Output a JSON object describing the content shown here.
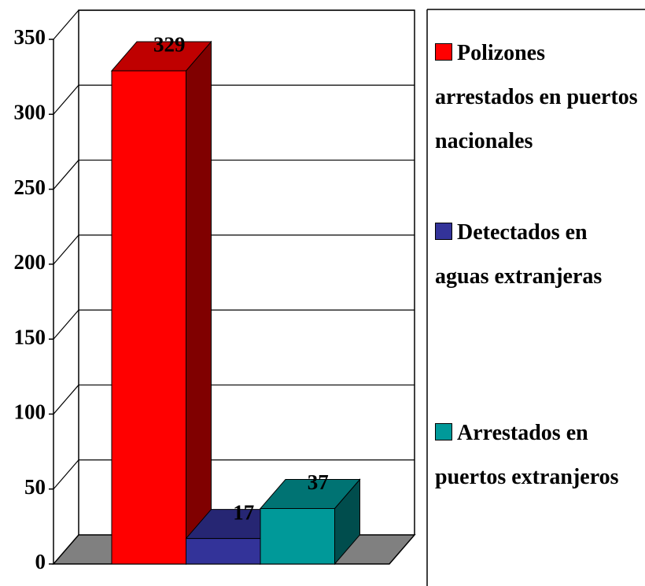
{
  "chart_data": {
    "type": "bar3d",
    "categories": [
      null
    ],
    "series": [
      {
        "name": "Polizones arrestados en puertos nacionales",
        "color": "#ff0000",
        "values": [
          329
        ]
      },
      {
        "name": "Detectados en aguas extranjeras",
        "color": "#333399",
        "values": [
          17
        ]
      },
      {
        "name": "Arrestados en puertos extranjeros",
        "color": "#009999",
        "values": [
          37
        ]
      }
    ],
    "ylim": [
      0,
      350
    ],
    "yticks": [
      0,
      50,
      100,
      150,
      200,
      250,
      300,
      350
    ],
    "grid": true,
    "data_labels": true,
    "legend": "right"
  }
}
